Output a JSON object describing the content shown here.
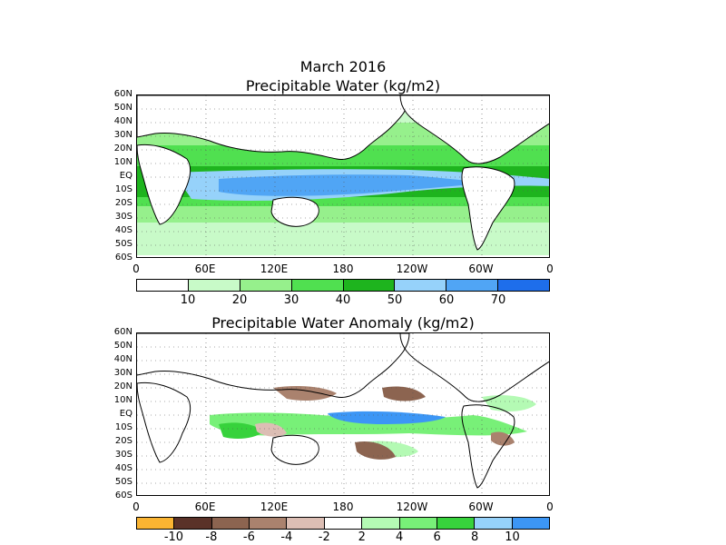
{
  "top_panel": {
    "title_line1": "March 2016",
    "title_line2": "Precipitable Water (kg/m2)",
    "lat_labels": [
      "60N",
      "50N",
      "40N",
      "30N",
      "20N",
      "10N",
      "EQ",
      "10S",
      "20S",
      "30S",
      "40S",
      "50S",
      "60S"
    ],
    "lon_labels": [
      "0",
      "60E",
      "120E",
      "180",
      "120W",
      "60W",
      "0"
    ],
    "colorbar": {
      "colors": [
        "#ffffff",
        "#c8fac8",
        "#96f08c",
        "#50e050",
        "#1eb41e",
        "#96d2fa",
        "#50a5f5",
        "#1e6eeb"
      ],
      "labels": [
        "10",
        "20",
        "30",
        "40",
        "50",
        "60",
        "70"
      ]
    }
  },
  "bottom_panel": {
    "title": "Precipitable Water Anomaly (kg/m2)",
    "lat_labels": [
      "60N",
      "50N",
      "40N",
      "30N",
      "20N",
      "10N",
      "EQ",
      "10S",
      "20S",
      "30S",
      "40S",
      "50S",
      "60S"
    ],
    "lon_labels": [
      "0",
      "60E",
      "120E",
      "180",
      "120W",
      "60W",
      "0"
    ],
    "colorbar": {
      "colors": [
        "#fab432",
        "#5a3228",
        "#8c6450",
        "#aa826e",
        "#dcbeb4",
        "#ffffff",
        "#b4fab4",
        "#78f078",
        "#37d23c",
        "#96d2fa",
        "#3c96f5"
      ],
      "labels": [
        "-10",
        "-8",
        "-6",
        "-4",
        "-2",
        "2",
        "4",
        "6",
        "8",
        "10"
      ]
    }
  }
}
